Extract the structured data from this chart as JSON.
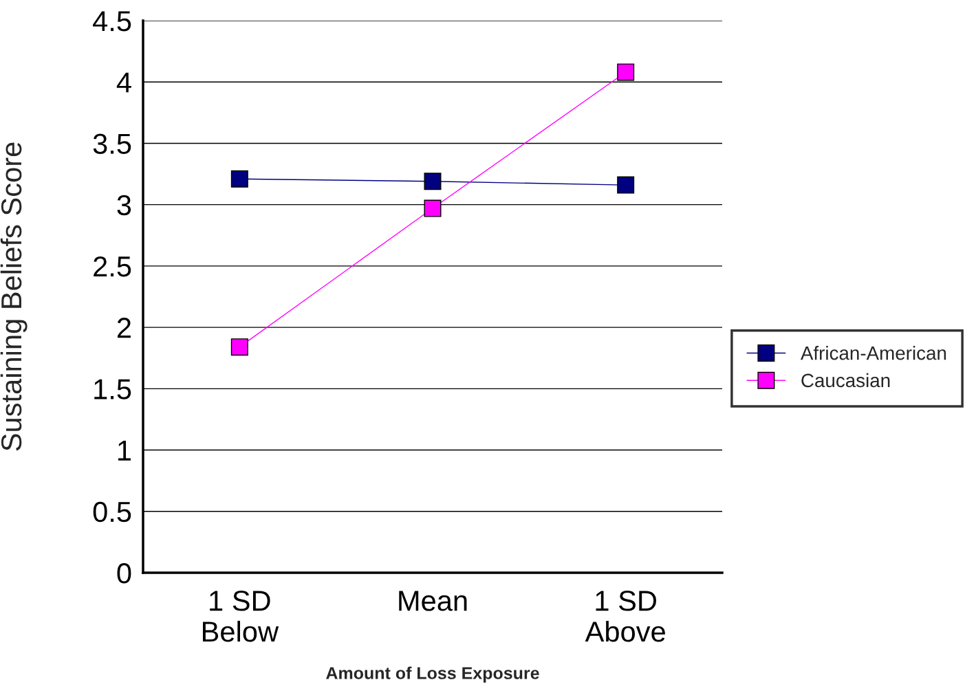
{
  "chart_data": {
    "type": "line",
    "xlabel": "Amount of Loss Exposure",
    "ylabel": "Sustaining Beliefs Score",
    "categories": [
      "1 SD\nBelow",
      "Mean",
      "1 SD\nAbove"
    ],
    "series": [
      {
        "name": "African-American",
        "color": "#000080",
        "values": [
          3.21,
          3.19,
          3.16
        ]
      },
      {
        "name": "Caucasian",
        "color": "#ff00ff",
        "values": [
          1.84,
          2.97,
          4.08
        ]
      }
    ],
    "ylim": [
      0,
      4.5
    ],
    "yticks": [
      0,
      0.5,
      1,
      1.5,
      2,
      2.5,
      3,
      3.5,
      4,
      4.5
    ],
    "grid": "y",
    "legend": "right",
    "marker": "square",
    "line_style": "solid"
  }
}
